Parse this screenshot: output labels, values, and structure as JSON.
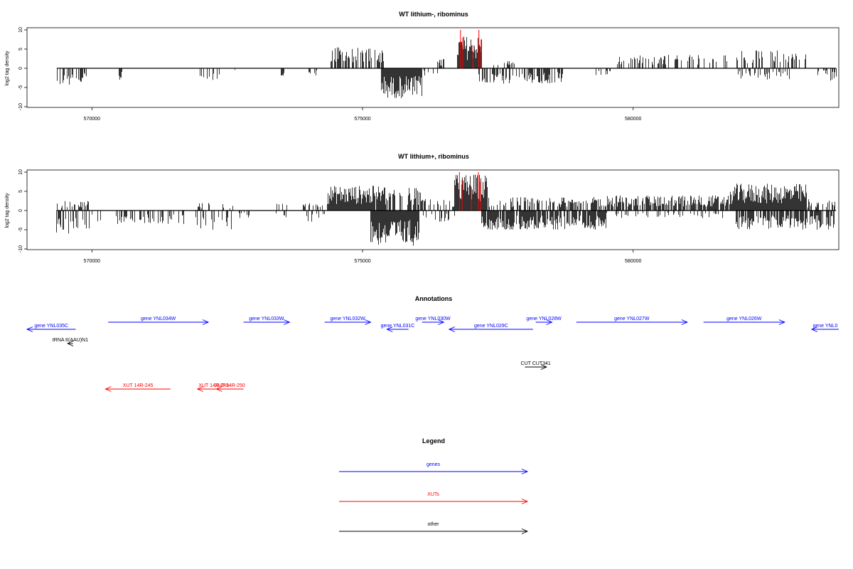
{
  "chart_data": [
    {
      "type": "bar",
      "title": "WT lithium-, ribominus",
      "ylabel": "log2 tag density",
      "ylim": [
        -10,
        10
      ],
      "yticks": [
        -10,
        -5,
        0,
        5,
        10
      ],
      "xlim": [
        568800,
        583800
      ],
      "xticks": [
        570000,
        575000,
        580000
      ],
      "colors": {
        "default": "#000000",
        "highlight": "#ff0000"
      },
      "segments": [
        {
          "from": 569350,
          "to": 569750,
          "min": -4.5,
          "max": 0,
          "density": 0.45
        },
        {
          "from": 569750,
          "to": 569900,
          "min": -4.5,
          "max": -1,
          "density": 0.5
        },
        {
          "from": 570500,
          "to": 570550,
          "min": -3.5,
          "max": -3,
          "density": 1
        },
        {
          "from": 571950,
          "to": 572400,
          "min": -3.2,
          "max": 0,
          "density": 0.3
        },
        {
          "from": 572600,
          "to": 572700,
          "min": -1,
          "max": 0,
          "density": 0.3
        },
        {
          "from": 573500,
          "to": 573550,
          "min": -2.5,
          "max": -2,
          "density": 1
        },
        {
          "from": 574000,
          "to": 574150,
          "min": -2,
          "max": 0,
          "density": 0.4
        },
        {
          "from": 574400,
          "to": 575400,
          "min": 0,
          "max": 5.5,
          "density": 0.6
        },
        {
          "from": 575350,
          "to": 576100,
          "min": -7.8,
          "max": 0,
          "density": 1
        },
        {
          "from": 576100,
          "to": 576400,
          "min": -2,
          "max": 0,
          "density": 0.3
        },
        {
          "from": 576200,
          "to": 576500,
          "min": 0,
          "max": 2.5,
          "density": 0.3
        },
        {
          "from": 576750,
          "to": 577200,
          "min": 0,
          "max": 8.5,
          "density": 1
        },
        {
          "from": 577150,
          "to": 578700,
          "min": -4,
          "max": 0,
          "density": 0.6
        },
        {
          "from": 577400,
          "to": 577800,
          "min": 0,
          "max": 2,
          "density": 0.2
        },
        {
          "from": 579300,
          "to": 579600,
          "min": -2.5,
          "max": 0,
          "density": 0.2
        },
        {
          "from": 579650,
          "to": 580950,
          "min": 0,
          "max": 3.5,
          "density": 0.35
        },
        {
          "from": 581000,
          "to": 581800,
          "min": 0,
          "max": 3.5,
          "density": 0.25
        },
        {
          "from": 581900,
          "to": 582900,
          "min": -3,
          "max": 4.8,
          "density": 0.7
        },
        {
          "from": 582900,
          "to": 583200,
          "min": 0,
          "max": 4,
          "density": 0.3
        },
        {
          "from": 583400,
          "to": 583600,
          "min": -2,
          "max": 0,
          "density": 0.3
        },
        {
          "from": 583650,
          "to": 583750,
          "min": -3.5,
          "max": 0,
          "density": 0.5
        }
      ],
      "highlights": [
        {
          "x": 576810,
          "y": 10
        },
        {
          "x": 576850,
          "y": 8
        },
        {
          "x": 577150,
          "y": 10
        },
        {
          "x": 577190,
          "y": 7.5
        },
        {
          "x": 577040,
          "y": 6
        }
      ]
    },
    {
      "type": "bar",
      "title": "WT lithium+, ribominus",
      "ylabel": "log2 tag density",
      "ylim": [
        -10,
        10
      ],
      "yticks": [
        -10,
        -5,
        0,
        5,
        10
      ],
      "xlim": [
        568800,
        583800
      ],
      "xticks": [
        570000,
        575000,
        580000
      ],
      "colors": {
        "default": "#000000",
        "highlight": "#ff0000"
      },
      "segments": [
        {
          "from": 569350,
          "to": 569950,
          "min": -6,
          "max": 2.8,
          "density": 0.9
        },
        {
          "from": 570000,
          "to": 570200,
          "min": -3,
          "max": 0,
          "density": 0.4
        },
        {
          "from": 570450,
          "to": 571000,
          "min": -3.5,
          "max": 0,
          "density": 0.5
        },
        {
          "from": 571000,
          "to": 571700,
          "min": -4,
          "max": 0,
          "density": 0.3
        },
        {
          "from": 571900,
          "to": 572600,
          "min": -5,
          "max": 2,
          "density": 0.6
        },
        {
          "from": 572700,
          "to": 572900,
          "min": -2,
          "max": 0,
          "density": 0.3
        },
        {
          "from": 573400,
          "to": 573600,
          "min": -2,
          "max": 2,
          "density": 0.4
        },
        {
          "from": 573900,
          "to": 574300,
          "min": -3,
          "max": 2,
          "density": 0.5
        },
        {
          "from": 574350,
          "to": 575400,
          "min": 0,
          "max": 6.5,
          "density": 0.95
        },
        {
          "from": 575150,
          "to": 576050,
          "min": -9.2,
          "max": 0,
          "density": 1
        },
        {
          "from": 575400,
          "to": 576100,
          "min": 0,
          "max": 6,
          "density": 0.6
        },
        {
          "from": 576100,
          "to": 576700,
          "min": -3,
          "max": 3,
          "density": 0.6
        },
        {
          "from": 576700,
          "to": 577300,
          "min": 0,
          "max": 9.5,
          "density": 1
        },
        {
          "from": 577200,
          "to": 579500,
          "min": -5,
          "max": 0,
          "density": 0.85
        },
        {
          "from": 577300,
          "to": 579500,
          "min": 0,
          "max": 3.5,
          "density": 0.55
        },
        {
          "from": 579500,
          "to": 581800,
          "min": 0,
          "max": 4,
          "density": 0.75
        },
        {
          "from": 579500,
          "to": 581800,
          "min": -2,
          "max": 0,
          "density": 0.2
        },
        {
          "from": 581800,
          "to": 583200,
          "min": 0,
          "max": 7,
          "density": 1
        },
        {
          "from": 581900,
          "to": 583750,
          "min": -5,
          "max": 0,
          "density": 0.7
        },
        {
          "from": 583200,
          "to": 583750,
          "min": 0,
          "max": 3,
          "density": 0.6
        }
      ],
      "highlights": [
        {
          "x": 576790,
          "y": 10
        },
        {
          "x": 576840,
          "y": 8
        },
        {
          "x": 577140,
          "y": 10
        },
        {
          "x": 577180,
          "y": 7.5
        },
        {
          "x": 577010,
          "y": 6
        }
      ]
    }
  ],
  "annotations": {
    "title": "Annotations",
    "xlim": [
      568800,
      583800
    ],
    "features": [
      {
        "label": "gene YNL035C",
        "start": 568800,
        "end": 569700,
        "row": 1,
        "strand": "-",
        "color": "#0000ff"
      },
      {
        "label": "gene YNL034W",
        "start": 570300,
        "end": 572150,
        "row": 0,
        "strand": "+",
        "color": "#0000ff"
      },
      {
        "label": "gene YNL033W",
        "start": 572800,
        "end": 573650,
        "row": 0,
        "strand": "+",
        "color": "#0000ff"
      },
      {
        "label": "gene YNL032W",
        "start": 574300,
        "end": 575150,
        "row": 0,
        "strand": "+",
        "color": "#0000ff"
      },
      {
        "label": "gene YNL031C",
        "start": 575450,
        "end": 575850,
        "row": 1,
        "strand": "-",
        "color": "#0000ff"
      },
      {
        "label": "gene YNL030W",
        "start": 576100,
        "end": 576500,
        "row": 0,
        "strand": "+",
        "color": "#0000ff"
      },
      {
        "label": "gene YNL029C",
        "start": 576600,
        "end": 578150,
        "row": 1,
        "strand": "-",
        "color": "#0000ff"
      },
      {
        "label": "gene YNL028W",
        "start": 578200,
        "end": 578500,
        "row": 0,
        "strand": "+",
        "color": "#0000ff"
      },
      {
        "label": "gene YNL027W",
        "start": 578950,
        "end": 581000,
        "row": 0,
        "strand": "+",
        "color": "#0000ff"
      },
      {
        "label": "gene YNL026W",
        "start": 581300,
        "end": 582800,
        "row": 0,
        "strand": "+",
        "color": "#0000ff"
      },
      {
        "label": "gene YNL0",
        "start": 583300,
        "end": 583800,
        "row": 1,
        "strand": "-",
        "color": "#0000ff"
      },
      {
        "label": "tRNA tI(AAU)N1",
        "start": 569550,
        "end": 569650,
        "row": 2,
        "strand": "-",
        "color": "#000000"
      },
      {
        "label": "CUT CUT341",
        "start": 578000,
        "end": 578400,
        "row": 3,
        "strand": "+",
        "color": "#000000"
      },
      {
        "label": "XUT 14R-245",
        "start": 570250,
        "end": 571450,
        "row": 4,
        "strand": "-",
        "color": "#ff0000"
      },
      {
        "label": "XUT 14R-249",
        "start": 571950,
        "end": 572550,
        "row": 4,
        "strand": "-",
        "color": "#ff0000"
      },
      {
        "label": "XUT 14R-250",
        "start": 572300,
        "end": 572800,
        "row": 4,
        "strand": "-",
        "color": "#ff0000"
      }
    ]
  },
  "legend": {
    "title": "Legend",
    "items": [
      {
        "label": "genes",
        "color": "#0000ff"
      },
      {
        "label": "XUTs",
        "color": "#ff0000"
      },
      {
        "label": "other",
        "color": "#000000"
      }
    ]
  }
}
